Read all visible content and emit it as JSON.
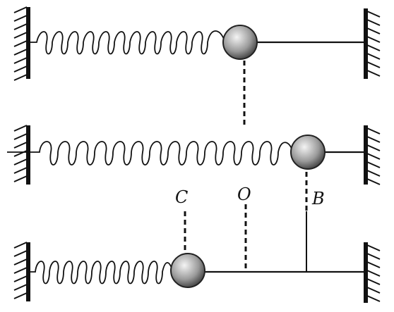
{
  "labels": {
    "c": "C",
    "o": "O",
    "b": "B"
  }
}
